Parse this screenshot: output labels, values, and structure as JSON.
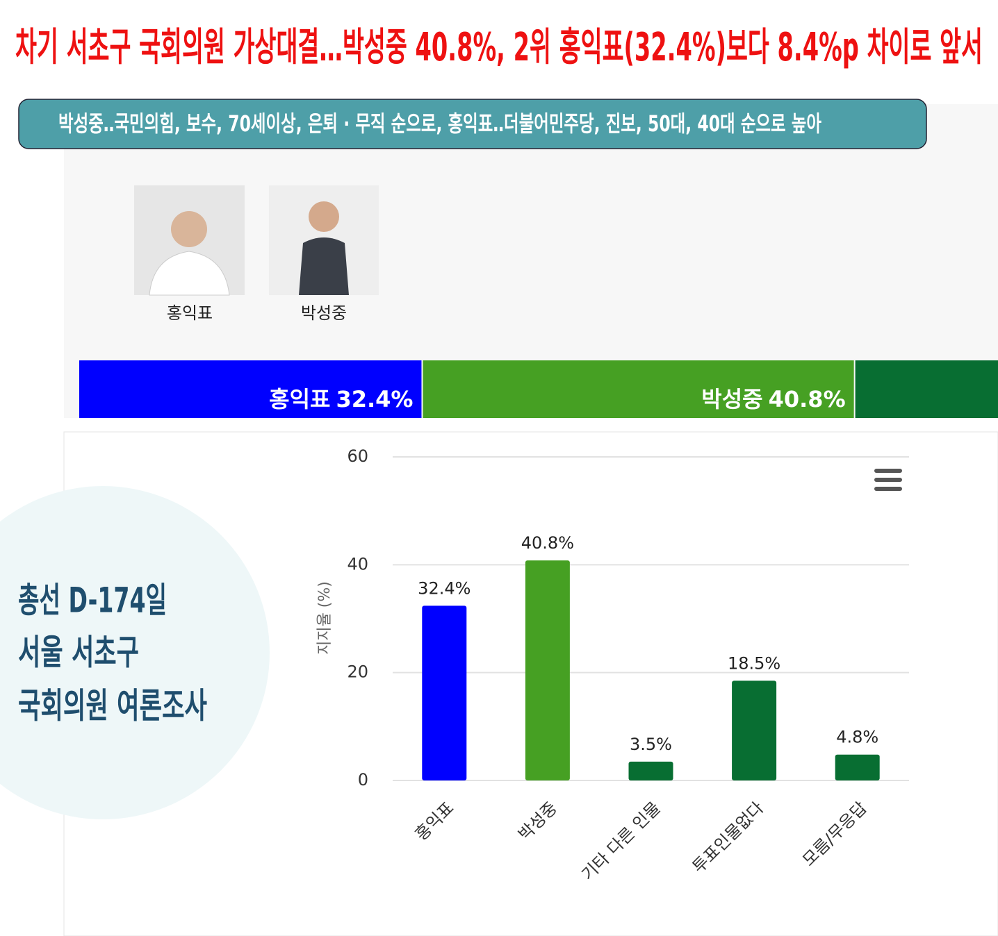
{
  "headline": "차기 서초구 국회의원 가상대결…박성중 40.8%, 2위 홍익표(32.4%)보다 8.4%p 차이로 앞서",
  "subheadline": "박성중‥국민의힘, 보수, 70세이상, 은퇴 · 무직 순으로, 홍익표‥더불어민주당, 진보, 50대, 40대 순으로 높아",
  "candidates": [
    {
      "name": "홍익표"
    },
    {
      "name": "박성중"
    }
  ],
  "stack_bar": {
    "segments": [
      {
        "name": "홍익표",
        "value": 32.4,
        "value_label": "32.4%",
        "color": "#0000ff"
      },
      {
        "name": "박성중",
        "value": 40.8,
        "value_label": "40.8%",
        "color": "#46a023"
      }
    ]
  },
  "side_title": [
    "총선 D-174일",
    "서울 서초구",
    "국회의원 여론조사"
  ],
  "chart_data": {
    "type": "bar",
    "y_label": "지지율 (%)",
    "categories": [
      "홍익표",
      "박성중",
      "기타 다른 인물",
      "투표인물없다",
      "모름/무응답"
    ],
    "values": [
      32.4,
      40.8,
      3.5,
      18.5,
      4.8
    ],
    "value_labels": [
      "32.4%",
      "40.8%",
      "3.5%",
      "18.5%",
      "4.8%"
    ],
    "colors": [
      "#0000ff",
      "#46a023",
      "#086e32",
      "#086e32",
      "#086e32"
    ],
    "ylim": [
      0,
      60
    ],
    "yticks": [
      0,
      20,
      40,
      60
    ],
    "grid": true
  }
}
